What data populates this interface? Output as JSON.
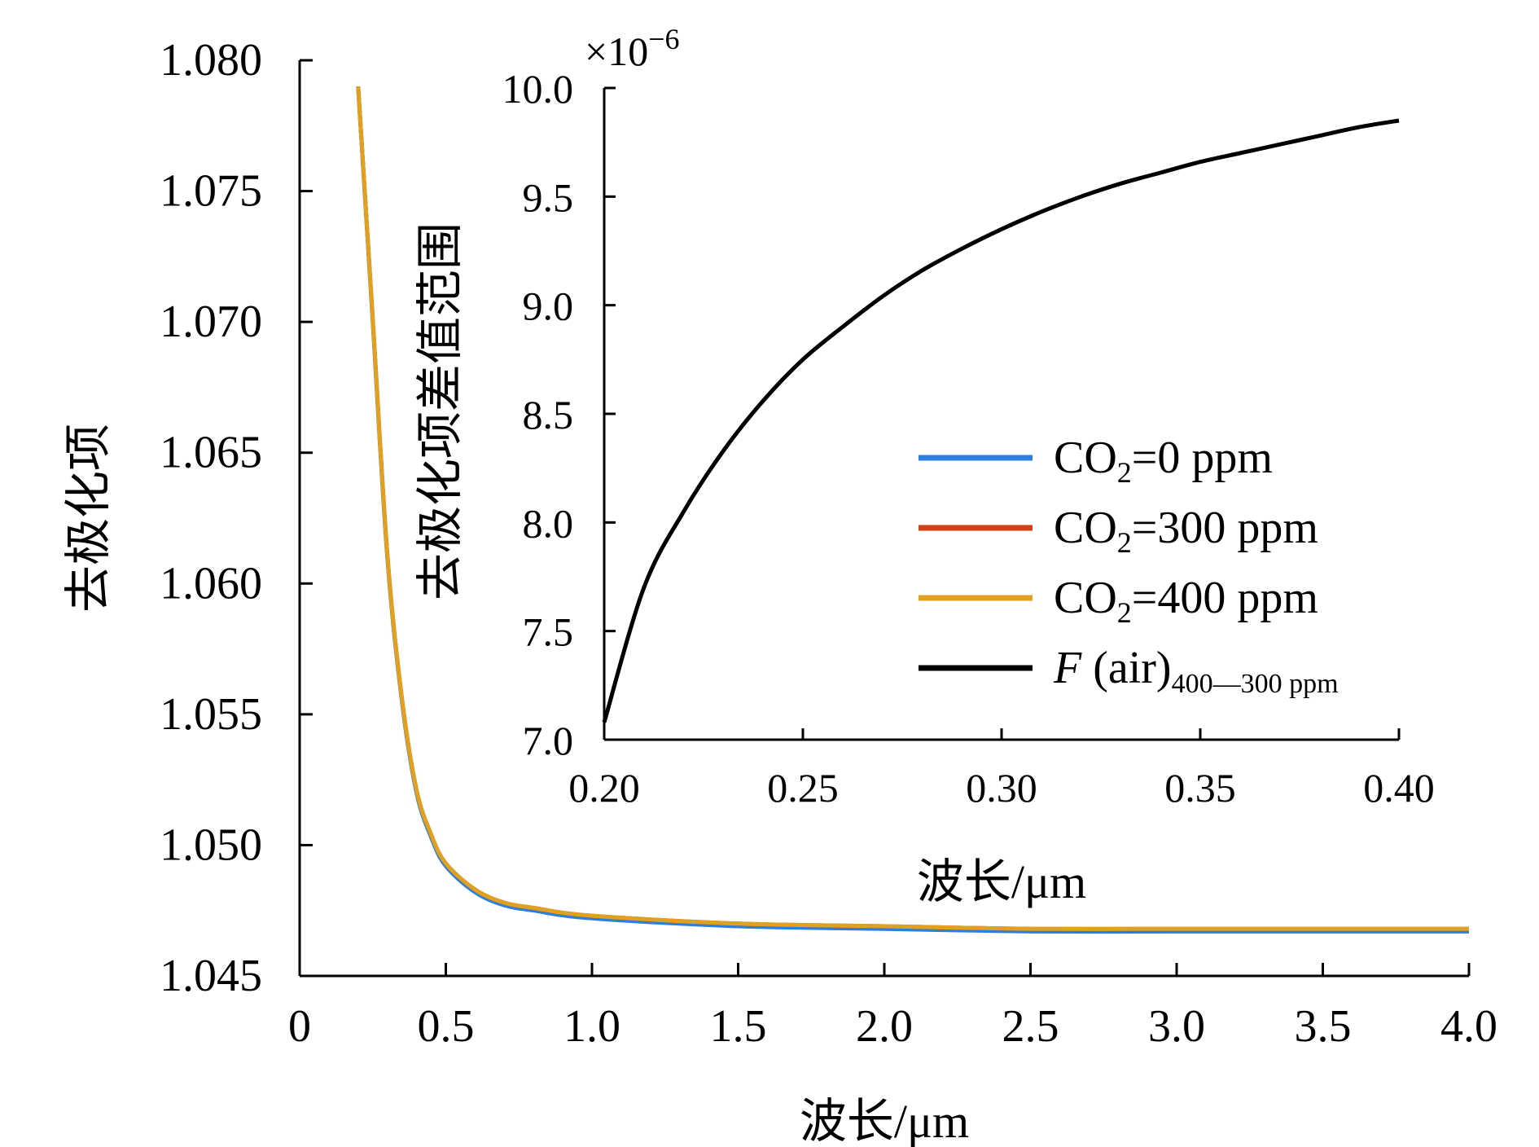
{
  "chart_data": [
    {
      "id": "main",
      "type": "line",
      "title": "",
      "xlabel": "波长/μm",
      "ylabel": "去极化项",
      "xlim": [
        0,
        4.0
      ],
      "ylim": [
        1.045,
        1.08
      ],
      "grid": false,
      "x_ticks": [
        0,
        0.5,
        1.0,
        1.5,
        2.0,
        2.5,
        3.0,
        3.5,
        4.0
      ],
      "x_tick_labels": [
        "0",
        "0.5",
        "1.0",
        "1.5",
        "2.0",
        "2.5",
        "3.0",
        "3.5",
        "4.0"
      ],
      "y_ticks": [
        1.045,
        1.05,
        1.055,
        1.06,
        1.065,
        1.07,
        1.075,
        1.08
      ],
      "y_tick_labels": [
        "1.045",
        "1.050",
        "1.055",
        "1.060",
        "1.065",
        "1.070",
        "1.075",
        "1.080"
      ],
      "x": [
        0.2,
        0.25,
        0.3,
        0.35,
        0.4,
        0.45,
        0.5,
        0.6,
        0.7,
        0.8,
        1.0,
        1.5,
        2.0,
        2.5,
        3.0,
        3.5,
        4.0
      ],
      "series": [
        {
          "name": "CO2=0 ppm",
          "color": "#2b7fe0",
          "values": [
            1.079,
            1.07,
            1.061,
            1.0555,
            1.052,
            1.0503,
            1.0492,
            1.0482,
            1.0477,
            1.0475,
            1.0472,
            1.0469,
            1.0468,
            1.0467,
            1.0467,
            1.0467,
            1.0467
          ]
        },
        {
          "name": "CO2=300 ppm",
          "color": "#d23f14",
          "values": [
            1.079,
            1.0701,
            1.0611,
            1.0556,
            1.0521,
            1.0504,
            1.0493,
            1.0483,
            1.0478,
            1.0476,
            1.0473,
            1.047,
            1.0469,
            1.0468,
            1.0468,
            1.0468,
            1.0468
          ]
        },
        {
          "name": "CO2=400 ppm",
          "color": "#e0a020",
          "values": [
            1.079,
            1.0701,
            1.0611,
            1.0556,
            1.0521,
            1.0504,
            1.0493,
            1.0483,
            1.0478,
            1.0476,
            1.0473,
            1.047,
            1.0469,
            1.0468,
            1.0468,
            1.0468,
            1.0468
          ]
        }
      ]
    },
    {
      "id": "inset",
      "type": "line",
      "title": "",
      "xlabel": "波长/μm",
      "ylabel": "去极化项差值范围",
      "y_scale_note": "×10",
      "y_scale_exp": "−6",
      "xlim": [
        0.2,
        0.4
      ],
      "ylim": [
        7.0,
        10.0
      ],
      "grid": false,
      "x_ticks": [
        0.2,
        0.25,
        0.3,
        0.35,
        0.4
      ],
      "x_tick_labels": [
        "0.20",
        "0.25",
        "0.30",
        "0.35",
        "0.40"
      ],
      "y_ticks": [
        7.0,
        7.5,
        8.0,
        8.5,
        9.0,
        9.5,
        10.0
      ],
      "y_tick_labels": [
        "7.0",
        "7.5",
        "8.0",
        "8.5",
        "9.0",
        "9.5",
        "10.0"
      ],
      "x": [
        0.2,
        0.21,
        0.22,
        0.23,
        0.24,
        0.25,
        0.26,
        0.27,
        0.28,
        0.29,
        0.3,
        0.31,
        0.32,
        0.33,
        0.34,
        0.35,
        0.36,
        0.37,
        0.38,
        0.39,
        0.4
      ],
      "series": [
        {
          "name": "F (air)400—300 ppm",
          "color": "#000000",
          "values": [
            7.08,
            7.7,
            8.05,
            8.33,
            8.56,
            8.75,
            8.9,
            9.04,
            9.16,
            9.26,
            9.35,
            9.43,
            9.5,
            9.56,
            9.61,
            9.66,
            9.7,
            9.74,
            9.78,
            9.82,
            9.85
          ]
        }
      ]
    }
  ],
  "legend": {
    "placement": "inside inset, lower-right",
    "items": [
      {
        "color": "#2b7fe0",
        "prefix": "CO",
        "sub": "2",
        "suffix": "=0 ppm"
      },
      {
        "color": "#d23f14",
        "prefix": "CO",
        "sub": "2",
        "suffix": "=300 ppm"
      },
      {
        "color": "#e0a020",
        "prefix": "CO",
        "sub": "2",
        "suffix": "=400 ppm"
      },
      {
        "color": "#000000",
        "prefix": "F",
        "middle": " (air)",
        "sub": "400—300 ppm",
        "suffix": ""
      }
    ]
  }
}
